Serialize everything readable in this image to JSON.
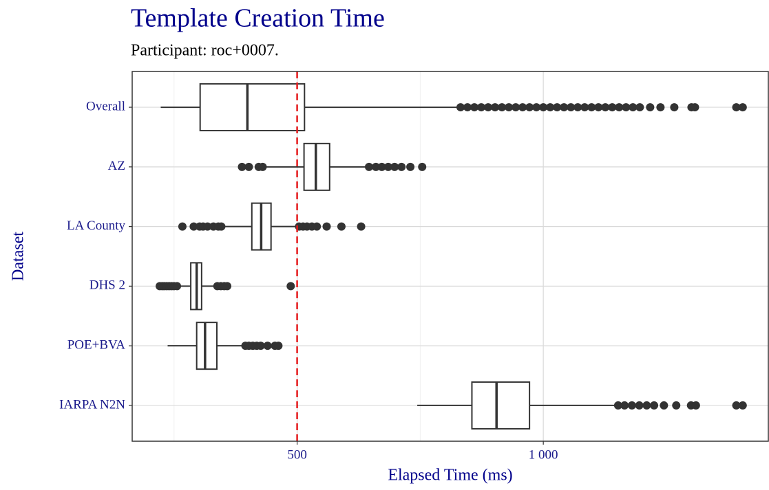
{
  "chart_data": {
    "type": "boxplot",
    "title": "Template Creation Time",
    "subtitle": "Participant: roc+0007.",
    "x_label": "Elapsed Time (ms)",
    "y_label": "Dataset",
    "categories": [
      "Overall",
      "AZ",
      "LA County",
      "DHS 2",
      "POE+BVA",
      "IARPA N2N"
    ],
    "boxes": [
      {
        "min": 223,
        "q1": 303,
        "median": 399,
        "q3": 515,
        "max": 825,
        "outliers": [
          832,
          846,
          860,
          874,
          888,
          902,
          916,
          930,
          944,
          958,
          972,
          986,
          1000,
          1014,
          1028,
          1042,
          1056,
          1070,
          1084,
          1098,
          1112,
          1126,
          1140,
          1154,
          1168,
          1182,
          1196,
          1217,
          1238,
          1266,
          1301,
          1308,
          1392,
          1405
        ]
      },
      {
        "min": 436,
        "q1": 514,
        "median": 538,
        "q3": 566,
        "max": 640,
        "outliers": [
          388,
          402,
          422,
          430,
          646,
          660,
          672,
          685,
          698,
          712,
          730,
          754
        ]
      },
      {
        "min": 352,
        "q1": 408,
        "median": 427,
        "q3": 447,
        "max": 500,
        "outliers": [
          267,
          290,
          302,
          309,
          318,
          330,
          340,
          346,
          504,
          512,
          520,
          530,
          540,
          560,
          590,
          630
        ]
      },
      {
        "min": 262,
        "q1": 284,
        "median": 296,
        "q3": 306,
        "max": 332,
        "outliers": [
          221,
          226,
          230,
          235,
          240,
          245,
          250,
          256,
          338,
          345,
          352,
          358,
          487
        ]
      },
      {
        "min": 237,
        "q1": 296,
        "median": 313,
        "q3": 337,
        "max": 392,
        "outliers": [
          395,
          402,
          410,
          418,
          426,
          440,
          455,
          462
        ]
      },
      {
        "min": 744,
        "q1": 855,
        "median": 905,
        "q3": 972,
        "max": 1147,
        "outliers": [
          1152,
          1165,
          1180,
          1195,
          1210,
          1225,
          1245,
          1270,
          1300,
          1310,
          1392,
          1405
        ]
      }
    ],
    "xlim": [
      165,
      1457
    ],
    "xticks": [
      500,
      {
        "value": 1000,
        "label": "1 000"
      }
    ],
    "x_minor_grid": [
      250,
      750
    ],
    "grid": true,
    "reference_line": 500,
    "reference_color": "#e41a1c",
    "box_color": "#333333"
  }
}
